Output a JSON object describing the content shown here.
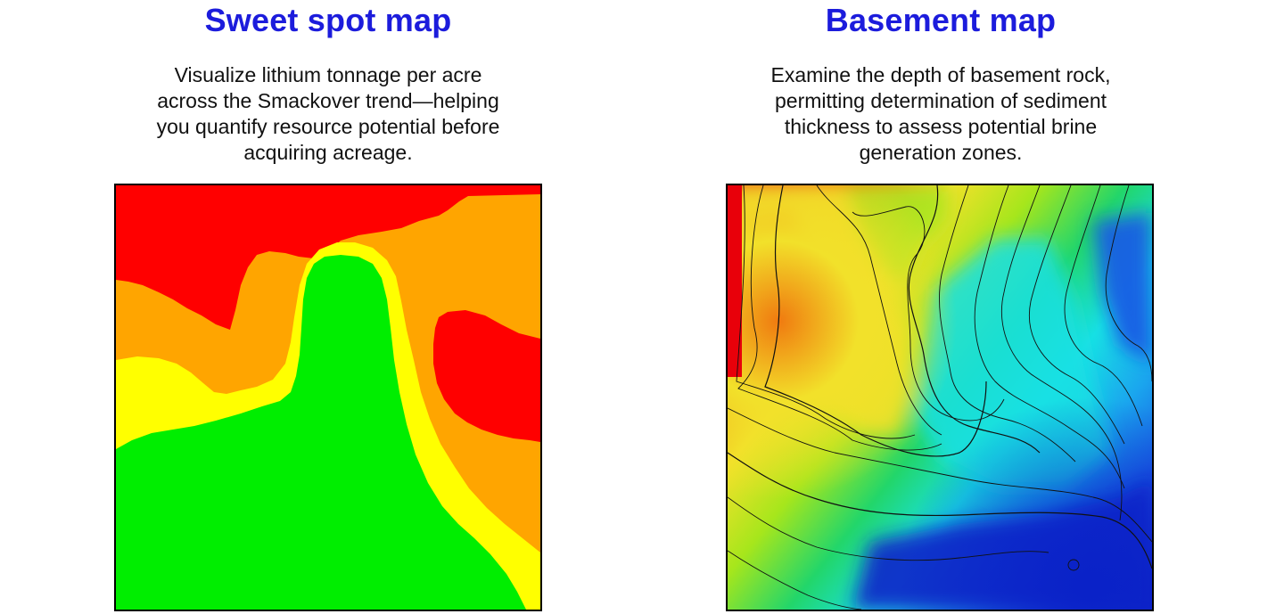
{
  "accent_color": "#1c1cdc",
  "sweet_spot": {
    "title": "Sweet spot map",
    "description_lines": [
      "Visualize lithium tonnage per acre",
      "across the Smackover trend—helping",
      "you quantify resource potential before",
      "acquiring acreage."
    ],
    "zone_colors": {
      "red": "#ff0000",
      "orange": "#ffa500",
      "yellow": "#ffff00",
      "green": "#00ee00"
    }
  },
  "basement": {
    "title": "Basement map",
    "description_lines": [
      "Examine the depth of basement rock,",
      "permitting determination of sediment",
      "thickness to assess potential brine",
      "generation zones."
    ],
    "color_ramp": [
      "#e8000a",
      "#f07a10",
      "#f2e12a",
      "#a6e61c",
      "#22d66a",
      "#18e0e4",
      "#1aa6ee",
      "#1a58e4",
      "#0a22c8"
    ]
  }
}
